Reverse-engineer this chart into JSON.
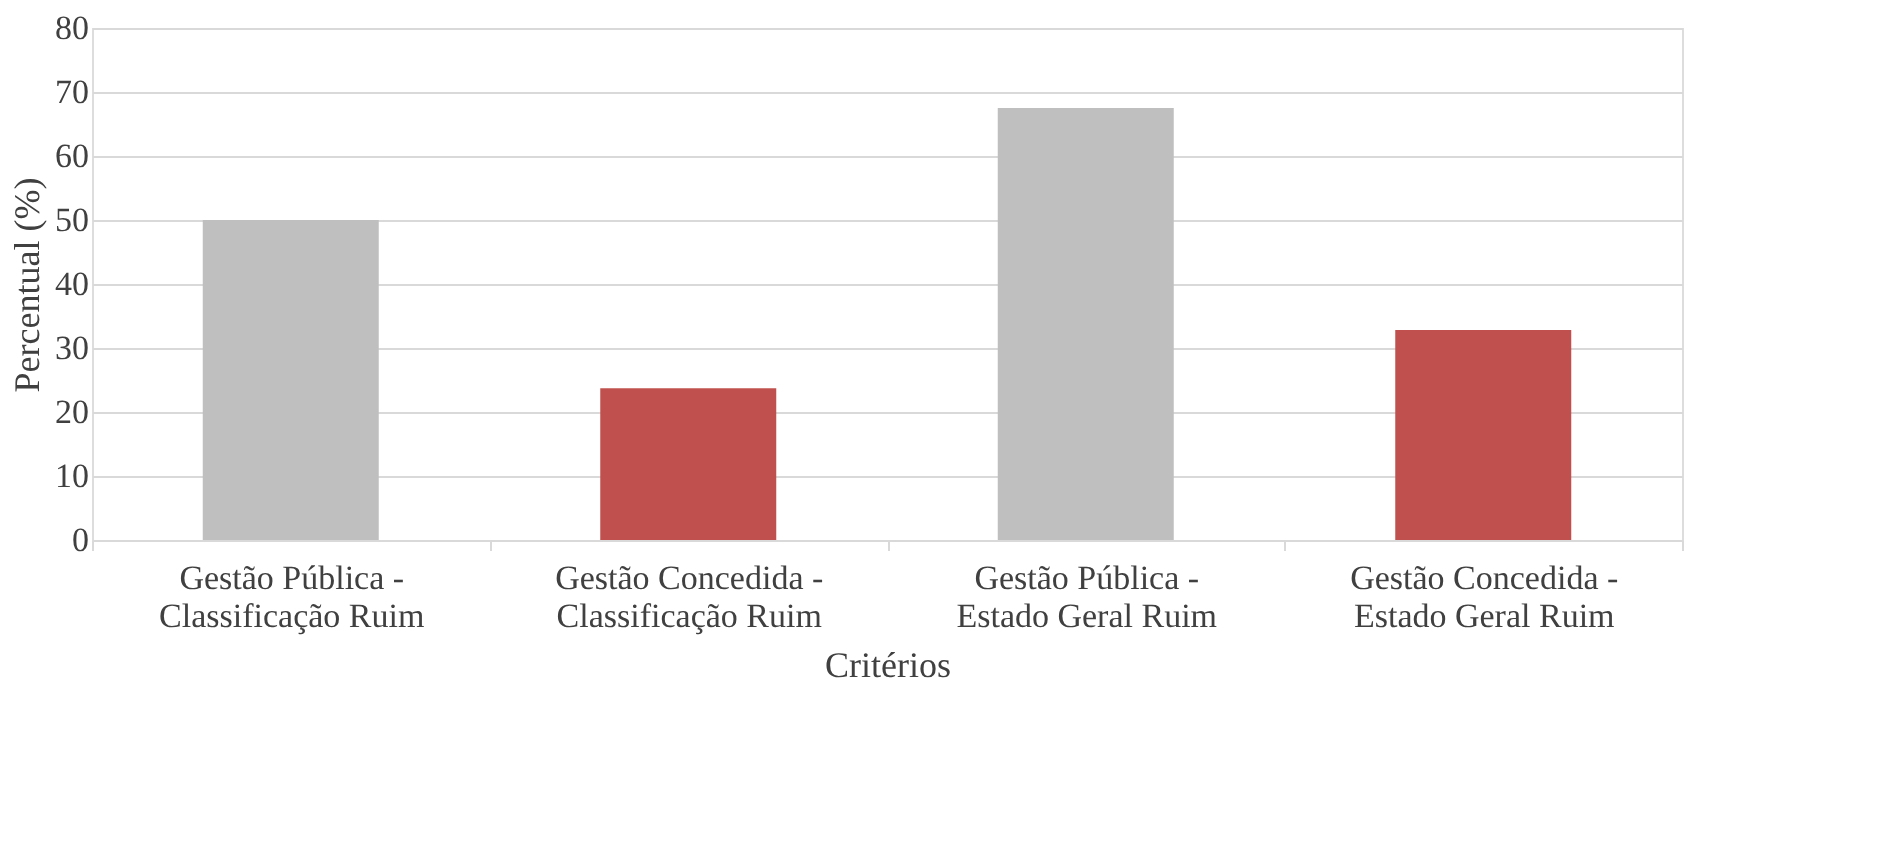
{
  "chart_data": {
    "type": "bar",
    "xlabel": "Critérios",
    "ylabel": "Percentual (%)",
    "categories": [
      "Gestão Pública - Classificação Ruim",
      "Gestão Concedida - Classificação Ruim",
      "Gestão Pública - Estado Geral Ruim",
      "Gestão Concedida - Estado Geral Ruim"
    ],
    "values": [
      50,
      23.7,
      67.5,
      32.8
    ],
    "colors": [
      "#bfbfbf",
      "#c0504d",
      "#bfbfbf",
      "#c0504d"
    ],
    "ylim": [
      0,
      80
    ],
    "yticks": [
      0,
      10,
      20,
      30,
      40,
      50,
      60,
      70,
      80
    ],
    "grid": "y",
    "legend": false
  }
}
